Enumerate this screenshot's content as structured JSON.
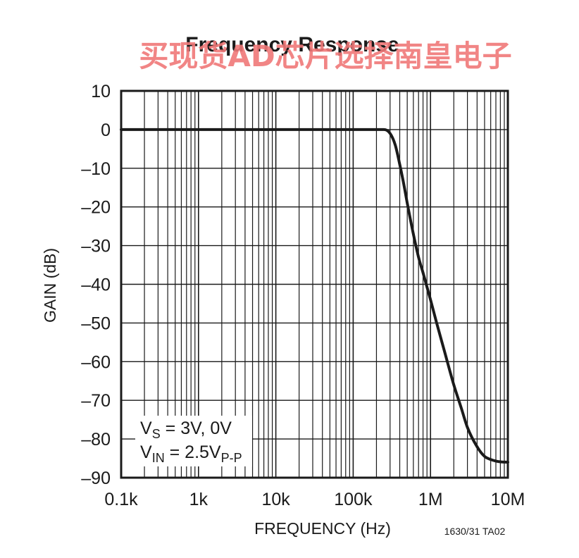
{
  "watermark": "买现货AD芯片选择南皇电子",
  "figure_code": "1630/31 TA02",
  "annotation": {
    "line1": {
      "main": "V",
      "sub": "S",
      "rest": " = 3V, 0V"
    },
    "line2": {
      "main": "V",
      "sub": "IN",
      "rest": " = 2.5V",
      "sub2": "P-P"
    }
  },
  "colors": {
    "curve": "#1a1a1a",
    "grid": "#1a1a1a",
    "watermark": "#f07878"
  },
  "chart_data": {
    "type": "line",
    "title": "Frequency Response",
    "xlabel": "FREQUENCY (Hz)",
    "ylabel": "GAIN (dB)",
    "x_scale": "log",
    "xlim": [
      100,
      10000000
    ],
    "ylim": [
      -90,
      10
    ],
    "grid": true,
    "x_ticks": [
      {
        "value": 100,
        "label": "0.1k"
      },
      {
        "value": 1000,
        "label": "1k"
      },
      {
        "value": 10000,
        "label": "10k"
      },
      {
        "value": 100000,
        "label": "100k"
      },
      {
        "value": 1000000,
        "label": "1M"
      },
      {
        "value": 10000000,
        "label": "10M"
      }
    ],
    "y_ticks": [
      {
        "value": 10,
        "label": "10"
      },
      {
        "value": 0,
        "label": "0"
      },
      {
        "value": -10,
        "label": "–10"
      },
      {
        "value": -20,
        "label": "–20"
      },
      {
        "value": -30,
        "label": "–30"
      },
      {
        "value": -40,
        "label": "–40"
      },
      {
        "value": -50,
        "label": "–50"
      },
      {
        "value": -60,
        "label": "–60"
      },
      {
        "value": -70,
        "label": "–70"
      },
      {
        "value": -80,
        "label": "–80"
      },
      {
        "value": -90,
        "label": "–90"
      }
    ],
    "series": [
      {
        "x": [
          100,
          1000,
          10000,
          100000,
          200000,
          250000,
          300000,
          350000,
          400000,
          450000,
          500000,
          600000,
          700000,
          800000,
          1000000,
          1200000,
          1500000,
          2000000,
          2500000,
          3000000,
          4000000,
          5000000,
          6000000,
          7000000,
          8000000,
          10000000
        ],
        "y": [
          0,
          0,
          0,
          0,
          0,
          0,
          -1,
          -4,
          -9,
          -14,
          -19,
          -27,
          -33,
          -37,
          -44,
          -50,
          -57,
          -66,
          -72,
          -77,
          -82,
          -84.5,
          -85.3,
          -85.7,
          -85.9,
          -86
        ]
      }
    ]
  }
}
